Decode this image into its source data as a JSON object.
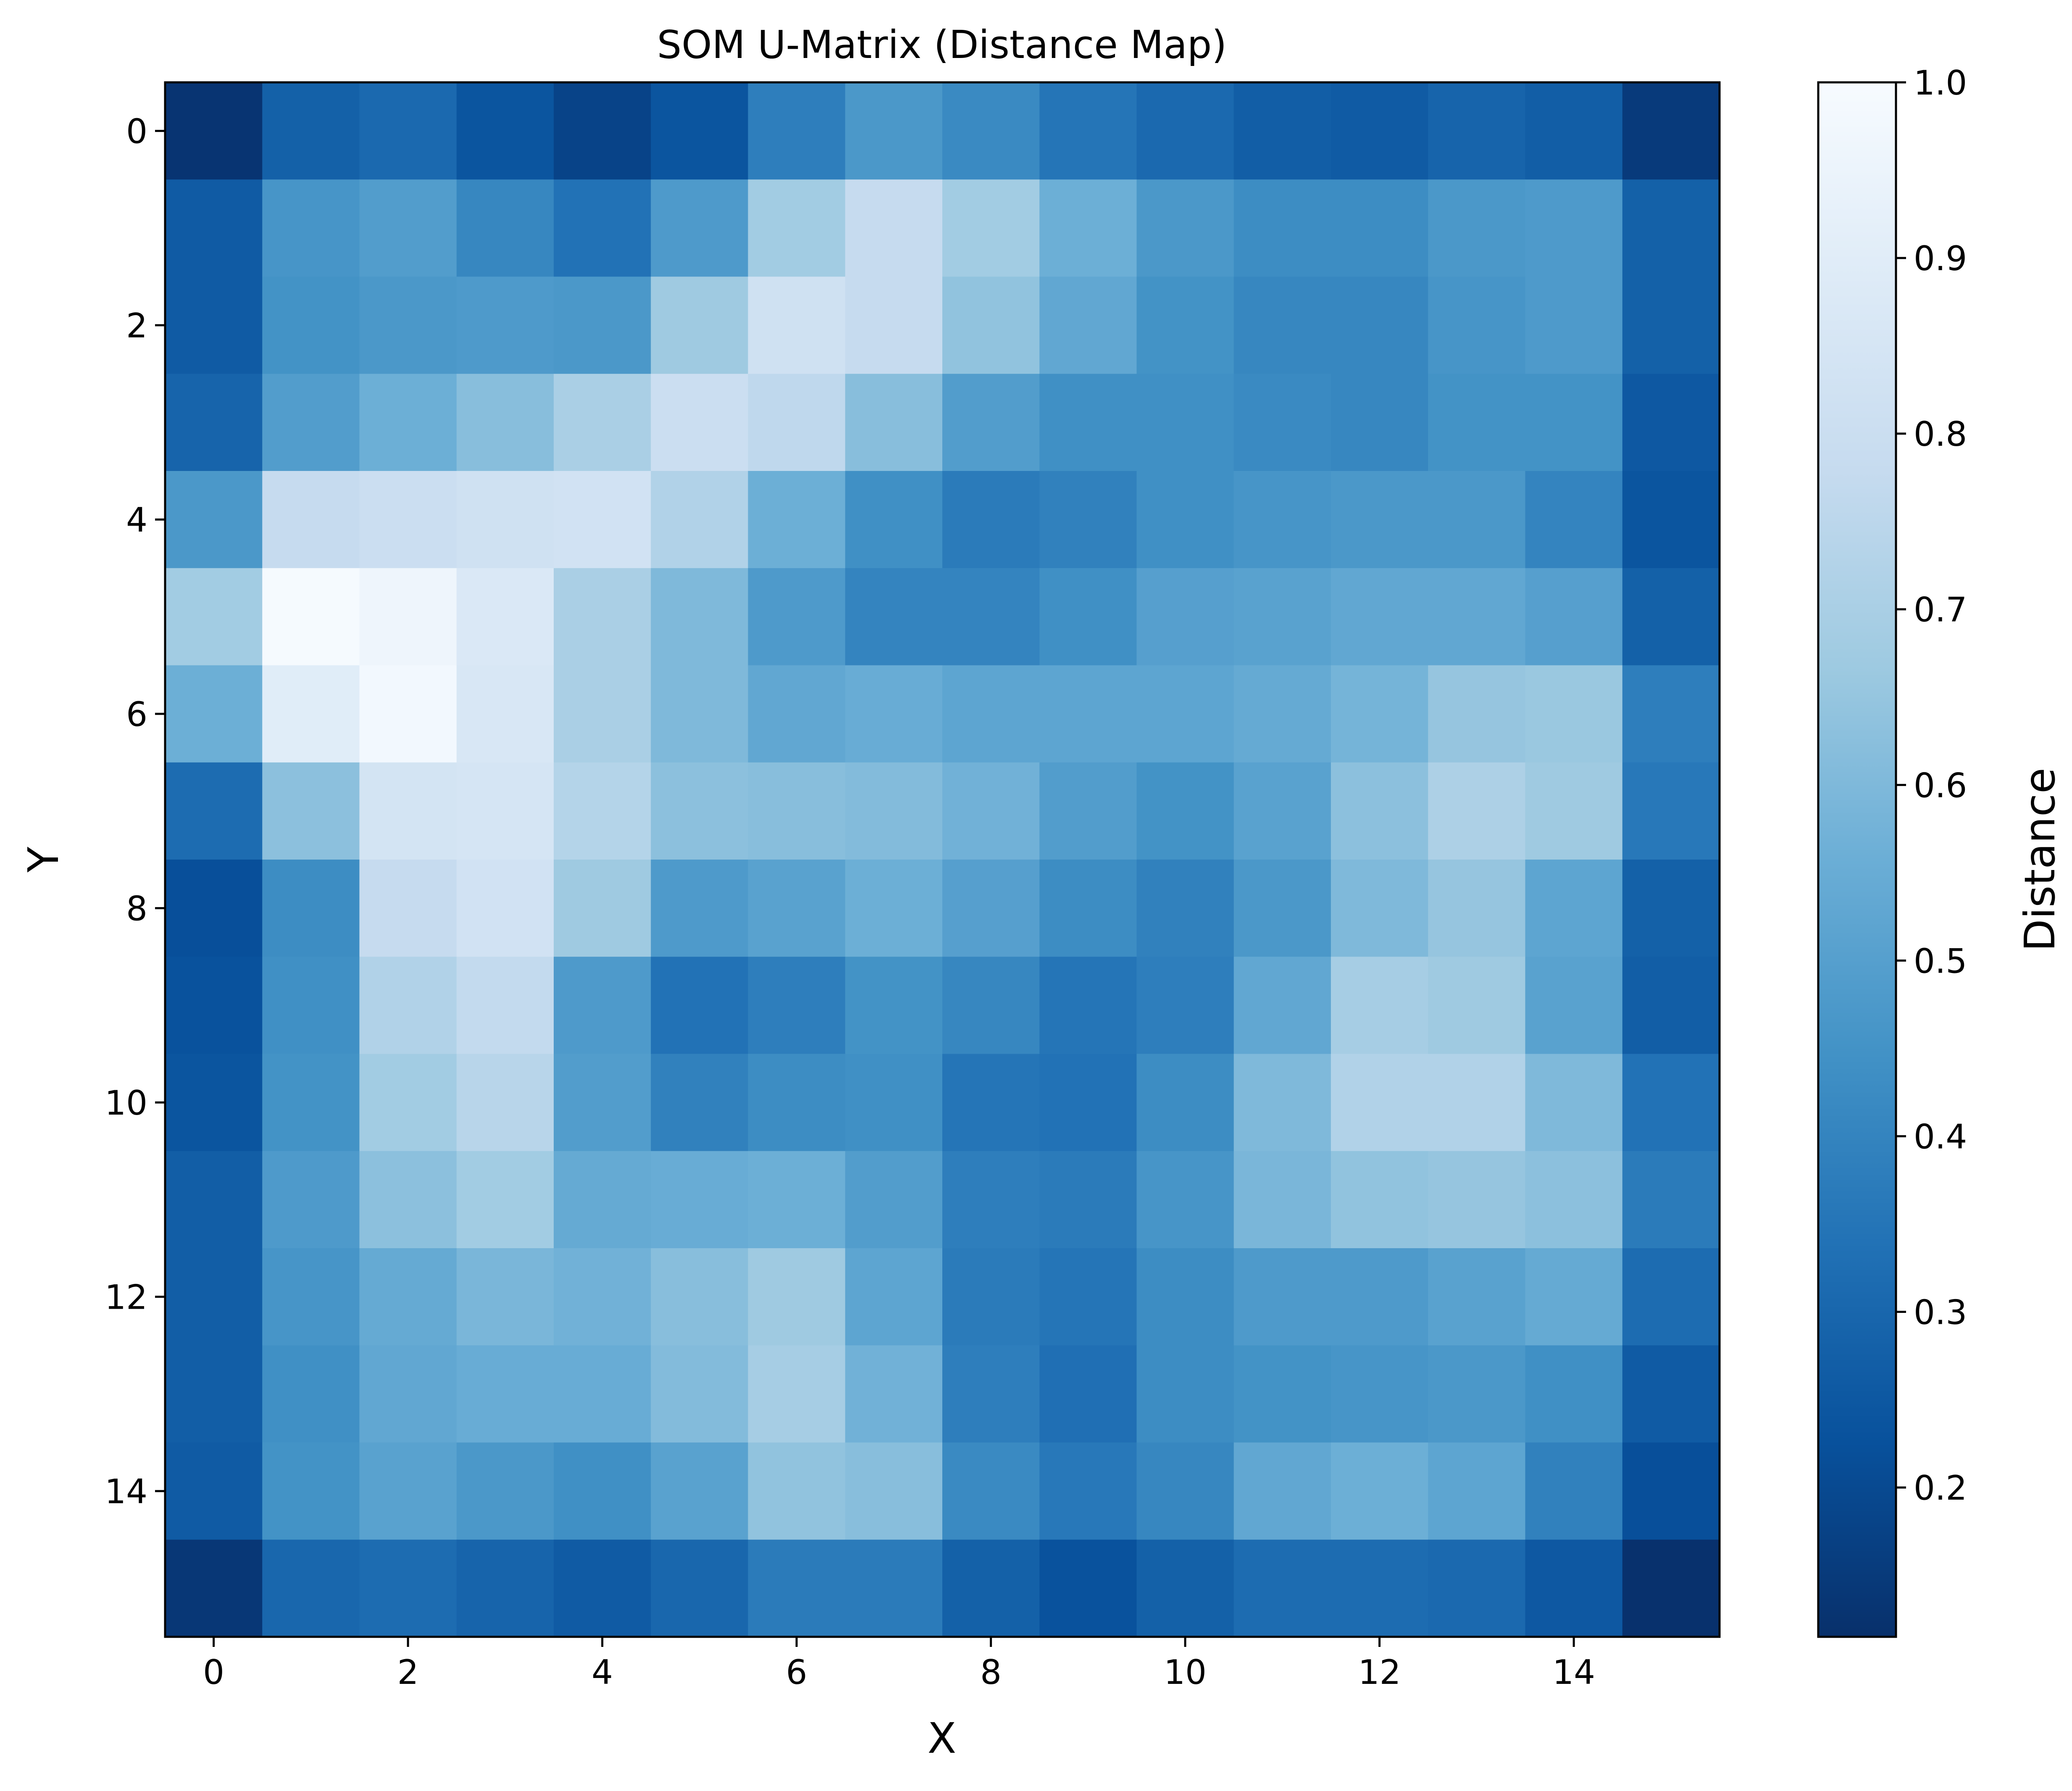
{
  "chart_data": {
    "type": "heatmap",
    "title": "SOM U-Matrix (Distance Map)",
    "xlabel": "X",
    "ylabel": "Y",
    "colorbar_label": "Distance",
    "colormap": "Blues_r",
    "x_tick_labels": [
      "0",
      "2",
      "4",
      "6",
      "8",
      "10",
      "12",
      "14"
    ],
    "y_tick_labels": [
      "0",
      "2",
      "4",
      "6",
      "8",
      "10",
      "12",
      "14"
    ],
    "colorbar_tick_labels": [
      "0.2",
      "0.3",
      "0.4",
      "0.5",
      "0.6",
      "0.7",
      "0.8",
      "0.9",
      "1.0"
    ],
    "value_range": [
      0.115,
      1.0
    ],
    "grid": false,
    "colorbar_position": "right",
    "rows": 16,
    "cols": 16,
    "values": [
      [
        0.13,
        0.28,
        0.31,
        0.24,
        0.18,
        0.24,
        0.38,
        0.47,
        0.42,
        0.35,
        0.31,
        0.27,
        0.26,
        0.29,
        0.27,
        0.15
      ],
      [
        0.26,
        0.46,
        0.49,
        0.41,
        0.34,
        0.48,
        0.68,
        0.78,
        0.68,
        0.56,
        0.47,
        0.43,
        0.43,
        0.47,
        0.48,
        0.28
      ],
      [
        0.26,
        0.45,
        0.47,
        0.48,
        0.47,
        0.67,
        0.82,
        0.78,
        0.64,
        0.53,
        0.45,
        0.41,
        0.41,
        0.46,
        0.48,
        0.28
      ],
      [
        0.29,
        0.49,
        0.56,
        0.62,
        0.7,
        0.8,
        0.76,
        0.62,
        0.49,
        0.44,
        0.44,
        0.42,
        0.41,
        0.45,
        0.45,
        0.25
      ],
      [
        0.47,
        0.78,
        0.8,
        0.82,
        0.83,
        0.72,
        0.56,
        0.44,
        0.37,
        0.39,
        0.44,
        0.46,
        0.47,
        0.47,
        0.4,
        0.24
      ],
      [
        0.68,
        0.99,
        0.96,
        0.87,
        0.7,
        0.6,
        0.48,
        0.4,
        0.4,
        0.44,
        0.5,
        0.51,
        0.53,
        0.53,
        0.5,
        0.28
      ],
      [
        0.56,
        0.9,
        0.98,
        0.86,
        0.7,
        0.6,
        0.53,
        0.55,
        0.52,
        0.52,
        0.52,
        0.54,
        0.58,
        0.65,
        0.66,
        0.38
      ],
      [
        0.32,
        0.63,
        0.84,
        0.85,
        0.73,
        0.63,
        0.62,
        0.61,
        0.57,
        0.49,
        0.45,
        0.51,
        0.63,
        0.71,
        0.67,
        0.36
      ],
      [
        0.22,
        0.43,
        0.78,
        0.83,
        0.67,
        0.48,
        0.51,
        0.56,
        0.5,
        0.43,
        0.39,
        0.47,
        0.6,
        0.65,
        0.52,
        0.28
      ],
      [
        0.23,
        0.44,
        0.72,
        0.77,
        0.48,
        0.34,
        0.38,
        0.45,
        0.41,
        0.35,
        0.38,
        0.53,
        0.69,
        0.67,
        0.51,
        0.27
      ],
      [
        0.24,
        0.45,
        0.68,
        0.74,
        0.49,
        0.39,
        0.43,
        0.44,
        0.35,
        0.34,
        0.43,
        0.6,
        0.72,
        0.72,
        0.6,
        0.34
      ],
      [
        0.27,
        0.48,
        0.63,
        0.68,
        0.54,
        0.55,
        0.56,
        0.49,
        0.38,
        0.37,
        0.46,
        0.59,
        0.64,
        0.65,
        0.63,
        0.37
      ],
      [
        0.27,
        0.46,
        0.54,
        0.59,
        0.57,
        0.62,
        0.67,
        0.52,
        0.37,
        0.35,
        0.43,
        0.48,
        0.48,
        0.51,
        0.54,
        0.32
      ],
      [
        0.27,
        0.44,
        0.53,
        0.55,
        0.55,
        0.61,
        0.69,
        0.57,
        0.38,
        0.33,
        0.43,
        0.45,
        0.46,
        0.47,
        0.44,
        0.26
      ],
      [
        0.26,
        0.45,
        0.51,
        0.47,
        0.44,
        0.51,
        0.64,
        0.62,
        0.42,
        0.36,
        0.41,
        0.53,
        0.56,
        0.52,
        0.39,
        0.22
      ],
      [
        0.14,
        0.3,
        0.32,
        0.29,
        0.26,
        0.3,
        0.37,
        0.37,
        0.28,
        0.23,
        0.28,
        0.32,
        0.32,
        0.31,
        0.25,
        0.12
      ]
    ]
  }
}
